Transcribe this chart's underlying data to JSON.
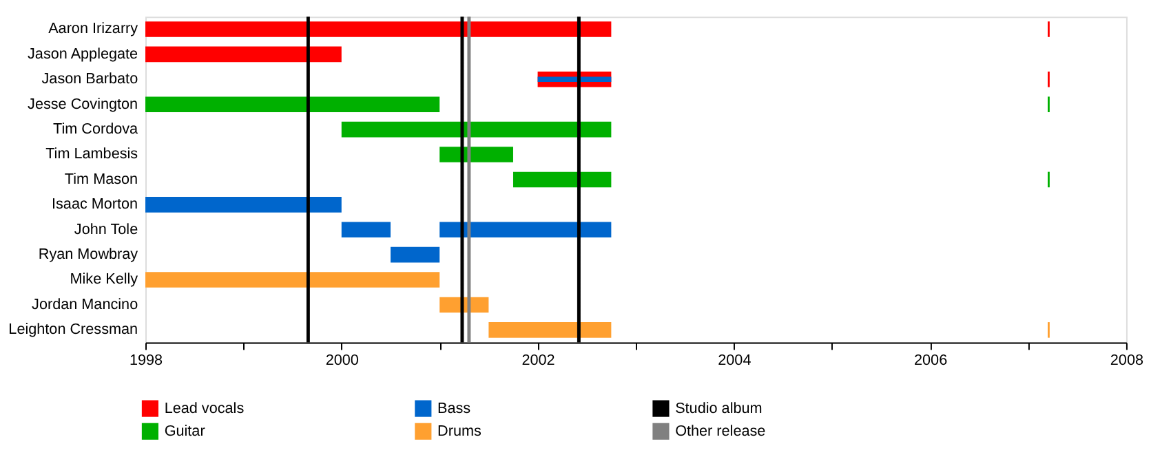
{
  "chart_data": {
    "type": "bar",
    "orientation": "horizontal",
    "categories": [
      "Aaron Irizarry",
      "Jason Applegate",
      "Jason Barbato",
      "Jesse Covington",
      "Tim Cordova",
      "Tim Lambesis",
      "Tim Mason",
      "Isaac Morton",
      "John Tole",
      "Ryan Mowbray",
      "Mike Kelly",
      "Jordan Mancino",
      "Leighton Cressman"
    ],
    "series": [
      {
        "name": "Lead vocals",
        "color": "#ff0000",
        "values": [
          4.75,
          2,
          0.75,
          null,
          null,
          null,
          null,
          null,
          null,
          null,
          null,
          null,
          null
        ],
        "base": [
          1998,
          1998,
          2002,
          null,
          null,
          null,
          null,
          null,
          null,
          null,
          null,
          null,
          null
        ]
      },
      {
        "name": "Guitar",
        "color": "#00b000",
        "values": [
          null,
          null,
          null,
          3,
          2.75,
          0.75,
          1,
          null,
          null,
          null,
          null,
          null,
          null
        ],
        "base": [
          null,
          null,
          null,
          1998,
          2000,
          2001,
          2001.75,
          null,
          null,
          null,
          null,
          null,
          null
        ]
      },
      {
        "name": "Bass",
        "color": "#0066cc",
        "values": [
          null,
          null,
          0.75,
          null,
          null,
          null,
          null,
          2,
          0.5,
          0.5,
          null,
          null,
          null
        ],
        "base": [
          null,
          null,
          2002,
          null,
          null,
          null,
          null,
          1998,
          2000,
          2000.5,
          null,
          null,
          null
        ]
      },
      {
        "color": "#0066cc",
        "values": [
          null,
          null,
          null,
          null,
          null,
          null,
          null,
          null,
          1.75,
          null,
          null,
          null,
          null
        ],
        "base": [
          null,
          null,
          null,
          null,
          null,
          null,
          null,
          null,
          2001,
          null,
          null,
          null,
          null
        ]
      },
      {
        "name": "Drums",
        "color": "#ffa030",
        "values": [
          null,
          null,
          null,
          null,
          null,
          null,
          null,
          null,
          null,
          null,
          3,
          0.5,
          1.25
        ],
        "base": [
          null,
          null,
          null,
          null,
          null,
          null,
          null,
          null,
          null,
          null,
          1998,
          2001,
          2001.5
        ]
      },
      {
        "colors": [
          "#ff0000",
          null,
          "#ff0000",
          "#00b000",
          null,
          null,
          "#00b000",
          null,
          null,
          null,
          null,
          null,
          "#ffa030"
        ],
        "values": [
          0.02,
          null,
          0.02,
          0.02,
          null,
          null,
          0.02,
          null,
          null,
          null,
          null,
          null,
          0.02
        ],
        "base": [
          2007.2,
          null,
          2007.2,
          2007.2,
          null,
          null,
          2007.2,
          null,
          null,
          null,
          null,
          null,
          2007.2
        ]
      }
    ],
    "ref_lines": [
      {
        "axis": "x",
        "value": 1999.66,
        "label": "Studio album",
        "color": "#000000"
      },
      {
        "axis": "x",
        "value": 2001.23,
        "color": "#000000"
      },
      {
        "axis": "x",
        "value": 2001.3,
        "label": "Other release",
        "color": "#808080"
      },
      {
        "axis": "x",
        "value": 2002.42,
        "color": "#000000"
      }
    ],
    "xlim": [
      1998,
      2008
    ],
    "xticks": [
      1998,
      {
        "value": 1999,
        "label": null
      },
      2000,
      {
        "value": 2001,
        "label": null
      },
      2002,
      {
        "value": 2003,
        "label": null
      },
      2004,
      {
        "value": 2005,
        "label": null
      },
      2006,
      {
        "value": 2007,
        "label": null
      },
      2008
    ],
    "grid": false,
    "legend": "bottom"
  }
}
